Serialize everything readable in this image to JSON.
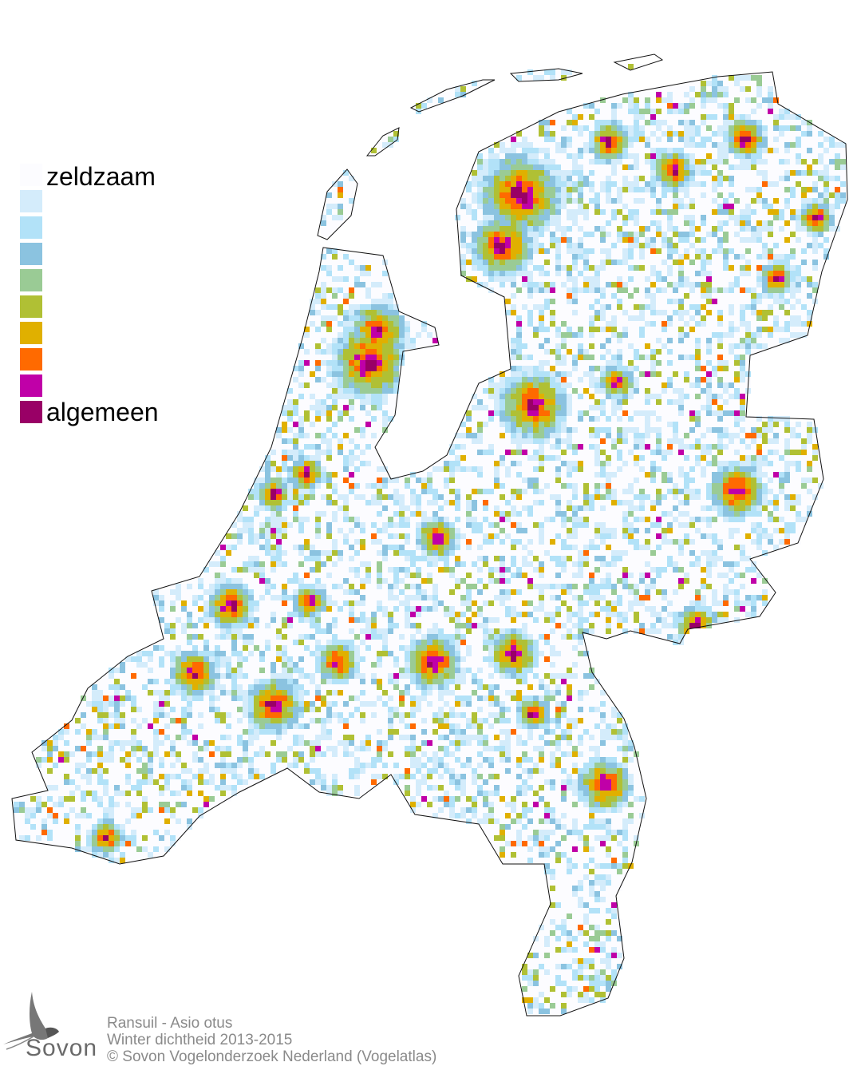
{
  "legend": {
    "top_label": "zeldzaam",
    "bottom_label": "algemeen",
    "colors": [
      "#fcfcff",
      "#d4ecfb",
      "#b2e2f8",
      "#8bc3e0",
      "#9acb95",
      "#b0c034",
      "#e0b000",
      "#ff6a00",
      "#c000a8",
      "#990066"
    ]
  },
  "credits": {
    "species": "Ransuil - Asio otus",
    "subtitle": "Winter dichtheid 2013-2015",
    "copyright": "© Sovon Vogelonderzoek Nederland (Vogelatlas)"
  },
  "logo": {
    "text": "Sovon",
    "icon": "swallow-icon"
  }
}
